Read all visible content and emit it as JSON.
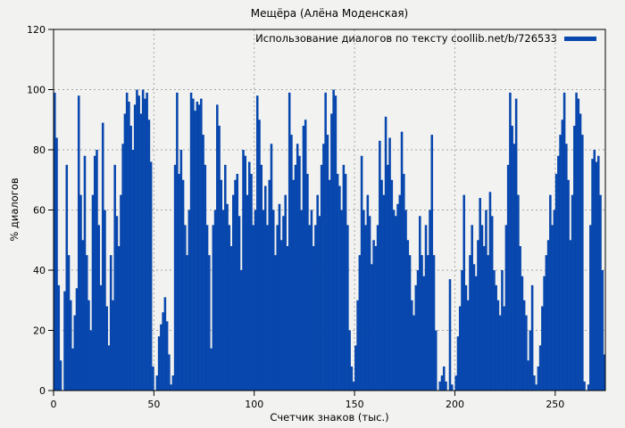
{
  "chart_data": {
    "type": "bar",
    "title": "Мещёра (Алёна Моденская)",
    "legend_label": "Использование диалогов по тексту coollib.net/b/726533",
    "xlabel": "Счетчик знаков (тыс.)",
    "ylabel": "% диалогов",
    "xlim": [
      0,
      275
    ],
    "ylim": [
      0,
      120
    ],
    "xticks": [
      0,
      50,
      100,
      150,
      200,
      250
    ],
    "yticks": [
      0,
      20,
      40,
      60,
      80,
      100,
      120
    ],
    "grid": true,
    "legend_position": "top-right-inside",
    "x_start": 0,
    "x_step": 1,
    "values": [
      99,
      84,
      35,
      10,
      0,
      33,
      75,
      45,
      30,
      14,
      25,
      34,
      98,
      65,
      50,
      78,
      45,
      30,
      20,
      65,
      78,
      80,
      55,
      35,
      89,
      60,
      28,
      15,
      45,
      30,
      75,
      58,
      48,
      65,
      82,
      92,
      99,
      96,
      88,
      80,
      95,
      100,
      98,
      92,
      100,
      97,
      99,
      90,
      76,
      8,
      0,
      5,
      18,
      22,
      26,
      31,
      23,
      12,
      2,
      5,
      75,
      99,
      72,
      80,
      70,
      55,
      45,
      60,
      99,
      97,
      93,
      96,
      95,
      97,
      85,
      75,
      55,
      45,
      14,
      55,
      60,
      95,
      88,
      70,
      60,
      75,
      62,
      55,
      48,
      65,
      70,
      72,
      58,
      40,
      80,
      78,
      65,
      76,
      72,
      55,
      60,
      98,
      90,
      75,
      60,
      68,
      55,
      70,
      82,
      60,
      45,
      55,
      62,
      50,
      58,
      65,
      48,
      99,
      85,
      70,
      75,
      82,
      78,
      60,
      88,
      90,
      72,
      55,
      60,
      48,
      55,
      65,
      58,
      75,
      82,
      99,
      85,
      70,
      92,
      100,
      98,
      72,
      68,
      60,
      75,
      72,
      55,
      20,
      8,
      3,
      15,
      30,
      45,
      78,
      60,
      55,
      65,
      58,
      42,
      50,
      48,
      55,
      83,
      70,
      65,
      91,
      75,
      84,
      70,
      60,
      58,
      62,
      65,
      86,
      72,
      60,
      50,
      45,
      30,
      25,
      35,
      40,
      58,
      45,
      38,
      55,
      45,
      60,
      85,
      45,
      20,
      0,
      3,
      5,
      8,
      3,
      0,
      37,
      2,
      0,
      5,
      18,
      28,
      40,
      65,
      35,
      30,
      45,
      55,
      42,
      38,
      50,
      64,
      55,
      48,
      60,
      45,
      66,
      58,
      40,
      35,
      30,
      25,
      40,
      28,
      55,
      75,
      99,
      88,
      82,
      97,
      65,
      48,
      38,
      30,
      25,
      10,
      20,
      35,
      5,
      2,
      8,
      15,
      28,
      38,
      45,
      50,
      65,
      55,
      60,
      72,
      78,
      85,
      90,
      99,
      82,
      70,
      50,
      65,
      88,
      99,
      97,
      92,
      85,
      3,
      0,
      2,
      55,
      77,
      80,
      76,
      78,
      65,
      40,
      12
    ],
    "colors": {
      "bar": "#0847ad",
      "background": "#f2f2f0",
      "grid": "#a6a6a6",
      "border": "#000000",
      "text": "#000000"
    }
  }
}
